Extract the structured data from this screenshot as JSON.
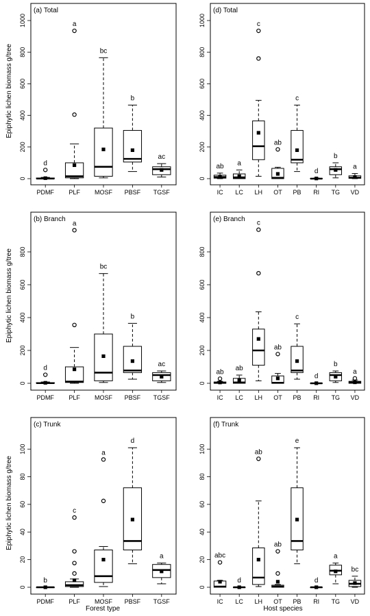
{
  "y_axis_label": "Epiphytic lichen biomass g/tree",
  "bottom_labels": {
    "left": "Forest type",
    "right": "Host species"
  },
  "chart_data": [
    {
      "type": "box",
      "panel": "(a) Total",
      "ylim": [
        0,
        1000
      ],
      "yticks": [
        0,
        200,
        400,
        600,
        800,
        1000
      ],
      "categories": [
        "PDMF",
        "PLF",
        "MOSF",
        "PBSF",
        "TGSF"
      ],
      "boxes": [
        {
          "category": "PDMF",
          "whisker_low": 0,
          "q1": 0,
          "median": 1,
          "q3": 4,
          "whisker_high": 8,
          "mean": 3,
          "outliers": [
            55
          ],
          "letter": "d"
        },
        {
          "category": "PLF",
          "whisker_low": 0,
          "q1": 5,
          "median": 15,
          "q3": 100,
          "whisker_high": 220,
          "mean": 85,
          "outliers": [
            405,
            935
          ],
          "letter": "a"
        },
        {
          "category": "MOSF",
          "whisker_low": 5,
          "q1": 15,
          "median": 75,
          "q3": 320,
          "whisker_high": 765,
          "mean": 185,
          "outliers": [],
          "letter": "bc"
        },
        {
          "category": "PBSF",
          "whisker_low": 45,
          "q1": 105,
          "median": 125,
          "q3": 305,
          "whisker_high": 465,
          "mean": 180,
          "outliers": [],
          "letter": "b"
        },
        {
          "category": "TGSF",
          "whisker_low": 10,
          "q1": 25,
          "median": 60,
          "q3": 75,
          "whisker_high": 95,
          "mean": 55,
          "outliers": [],
          "letter": "ac"
        }
      ]
    },
    {
      "type": "box",
      "panel": "(b) Branch",
      "ylim": [
        0,
        950
      ],
      "yticks": [
        0,
        200,
        400,
        600,
        800
      ],
      "categories": [
        "PDMF",
        "PLF",
        "MOSF",
        "PBSF",
        "TGSF"
      ],
      "boxes": [
        {
          "category": "PDMF",
          "whisker_low": 0,
          "q1": 0,
          "median": 1,
          "q3": 4,
          "whisker_high": 8,
          "mean": 3,
          "outliers": [
            52
          ],
          "letter": "d"
        },
        {
          "category": "PLF",
          "whisker_low": 0,
          "q1": 5,
          "median": 10,
          "q3": 100,
          "whisker_high": 218,
          "mean": 85,
          "outliers": [
            355,
            932
          ],
          "letter": "a"
        },
        {
          "category": "MOSF",
          "whisker_low": 5,
          "q1": 15,
          "median": 65,
          "q3": 300,
          "whisker_high": 668,
          "mean": 165,
          "outliers": [],
          "letter": "bc"
        },
        {
          "category": "PBSF",
          "whisker_low": 25,
          "q1": 65,
          "median": 78,
          "q3": 225,
          "whisker_high": 365,
          "mean": 135,
          "outliers": [],
          "letter": "b"
        },
        {
          "category": "TGSF",
          "whisker_low": 5,
          "q1": 15,
          "median": 50,
          "q3": 65,
          "whisker_high": 75,
          "mean": 40,
          "outliers": [],
          "letter": "ac"
        }
      ]
    },
    {
      "type": "box",
      "panel": "(c) Trunk",
      "ylim": [
        0,
        110
      ],
      "yticks": [
        0,
        20,
        40,
        60,
        80,
        100
      ],
      "categories": [
        "PDMF",
        "PLF",
        "MOSF",
        "PBSF",
        "TGSF"
      ],
      "boxes": [
        {
          "category": "PDMF",
          "whisker_low": 0,
          "q1": 0,
          "median": 0,
          "q3": 0,
          "whisker_high": 0,
          "mean": 0,
          "outliers": [],
          "letter": "b"
        },
        {
          "category": "PLF",
          "whisker_low": 0,
          "q1": 0.5,
          "median": 1.5,
          "q3": 4,
          "whisker_high": 6,
          "mean": 5,
          "outliers": [
            10,
            17.5,
            26,
            50.5
          ],
          "letter": "c"
        },
        {
          "category": "MOSF",
          "whisker_low": 0.5,
          "q1": 3.5,
          "median": 8,
          "q3": 27,
          "whisker_high": 29.5,
          "mean": 20,
          "outliers": [
            62.5,
            92.5
          ],
          "letter": "a"
        },
        {
          "category": "PBSF",
          "whisker_low": 17,
          "q1": 27,
          "median": 33.5,
          "q3": 72,
          "whisker_high": 101,
          "mean": 49,
          "outliers": [],
          "letter": "d"
        },
        {
          "category": "TGSF",
          "whisker_low": 2.5,
          "q1": 7,
          "median": 12.5,
          "q3": 16.5,
          "whisker_high": 17.5,
          "mean": 11.5,
          "outliers": [],
          "letter": "a"
        }
      ]
    },
    {
      "type": "box",
      "panel": "(d) Total",
      "ylim": [
        0,
        1000
      ],
      "yticks": [
        0,
        200,
        400,
        600,
        800,
        1000
      ],
      "categories": [
        "IC",
        "LC",
        "LH",
        "OT",
        "PB",
        "RI",
        "TG",
        "VD"
      ],
      "boxes": [
        {
          "category": "IC",
          "whisker_low": 0,
          "q1": 3,
          "median": 10,
          "q3": 22,
          "whisker_high": 35,
          "mean": 12,
          "outliers": [],
          "letter": "ab"
        },
        {
          "category": "LC",
          "whisker_low": 0,
          "q1": 0,
          "median": 8,
          "q3": 30,
          "whisker_high": 55,
          "mean": 15,
          "outliers": [],
          "letter": "a"
        },
        {
          "category": "LH",
          "whisker_low": 15,
          "q1": 120,
          "median": 205,
          "q3": 365,
          "whisker_high": 495,
          "mean": 290,
          "outliers": [
            760,
            935
          ],
          "letter": "c"
        },
        {
          "category": "OT",
          "whisker_low": 0,
          "q1": 0,
          "median": 5,
          "q3": 65,
          "whisker_high": 72,
          "mean": 30,
          "outliers": [
            185
          ],
          "letter": "ab"
        },
        {
          "category": "PB",
          "whisker_low": 45,
          "q1": 100,
          "median": 120,
          "q3": 305,
          "whisker_high": 465,
          "mean": 180,
          "outliers": [],
          "letter": "c"
        },
        {
          "category": "RI",
          "whisker_low": 0,
          "q1": 0,
          "median": 0,
          "q3": 2,
          "whisker_high": 4,
          "mean": 1,
          "outliers": [],
          "letter": "d"
        },
        {
          "category": "TG",
          "whisker_low": 5,
          "q1": 25,
          "median": 60,
          "q3": 75,
          "whisker_high": 100,
          "mean": 55,
          "outliers": [],
          "letter": "b"
        },
        {
          "category": "VD",
          "whisker_low": 0,
          "q1": 2,
          "median": 6,
          "q3": 18,
          "whisker_high": 32,
          "mean": 10,
          "outliers": [],
          "letter": "a"
        }
      ]
    },
    {
      "type": "box",
      "panel": "(e) Branch",
      "ylim": [
        0,
        950
      ],
      "yticks": [
        0,
        200,
        400,
        600,
        800
      ],
      "categories": [
        "IC",
        "LC",
        "LH",
        "OT",
        "PB",
        "RI",
        "TG",
        "VD"
      ],
      "boxes": [
        {
          "category": "IC",
          "whisker_low": 0,
          "q1": 0,
          "median": 3,
          "q3": 8,
          "whisker_high": 12,
          "mean": 5,
          "outliers": [
            28
          ],
          "letter": "ab"
        },
        {
          "category": "LC",
          "whisker_low": 0,
          "q1": 0,
          "median": 5,
          "q3": 30,
          "whisker_high": 50,
          "mean": 20,
          "outliers": [],
          "letter": "ab"
        },
        {
          "category": "LH",
          "whisker_low": 15,
          "q1": 110,
          "median": 200,
          "q3": 330,
          "whisker_high": 435,
          "mean": 270,
          "outliers": [
            670,
            935
          ],
          "letter": "c"
        },
        {
          "category": "OT",
          "whisker_low": 0,
          "q1": 0,
          "median": 3,
          "q3": 45,
          "whisker_high": 60,
          "mean": 30,
          "outliers": [
            178
          ],
          "letter": "ab"
        },
        {
          "category": "PB",
          "whisker_low": 25,
          "q1": 65,
          "median": 78,
          "q3": 225,
          "whisker_high": 362,
          "mean": 135,
          "outliers": [],
          "letter": "c"
        },
        {
          "category": "RI",
          "whisker_low": 0,
          "q1": 0,
          "median": 0,
          "q3": 1,
          "whisker_high": 2,
          "mean": 0.5,
          "outliers": [],
          "letter": "d"
        },
        {
          "category": "TG",
          "whisker_low": 5,
          "q1": 15,
          "median": 50,
          "q3": 65,
          "whisker_high": 75,
          "mean": 40,
          "outliers": [],
          "letter": "b"
        },
        {
          "category": "VD",
          "whisker_low": 0,
          "q1": 0,
          "median": 5,
          "q3": 12,
          "whisker_high": 20,
          "mean": 6,
          "outliers": [
            30
          ],
          "letter": "a"
        }
      ]
    },
    {
      "type": "box",
      "panel": "(f) Trunk",
      "ylim": [
        0,
        110
      ],
      "yticks": [
        0,
        20,
        40,
        60,
        80,
        100
      ],
      "categories": [
        "IC",
        "LC",
        "LH",
        "OT",
        "PB",
        "RI",
        "TG",
        "VD"
      ],
      "boxes": [
        {
          "category": "IC",
          "whisker_low": 0,
          "q1": 0,
          "median": 0.5,
          "q3": 4.5,
          "whisker_high": 5,
          "mean": 4,
          "outliers": [
            18
          ],
          "letter": "abc"
        },
        {
          "category": "LC",
          "whisker_low": 0,
          "q1": 0,
          "median": 0,
          "q3": 0,
          "whisker_high": 0,
          "mean": 0,
          "outliers": [],
          "letter": "d"
        },
        {
          "category": "LH",
          "whisker_low": 0.5,
          "q1": 2,
          "median": 7,
          "q3": 28.5,
          "whisker_high": 62.5,
          "mean": 20,
          "outliers": [
            93
          ],
          "letter": "ab"
        },
        {
          "category": "OT",
          "whisker_low": 0,
          "q1": 0,
          "median": 0.5,
          "q3": 1.5,
          "whisker_high": 2,
          "mean": 4,
          "outliers": [
            10,
            26
          ],
          "letter": "ab"
        },
        {
          "category": "PB",
          "whisker_low": 17,
          "q1": 27,
          "median": 33.5,
          "q3": 72,
          "whisker_high": 101,
          "mean": 49,
          "outliers": [],
          "letter": "e"
        },
        {
          "category": "RI",
          "whisker_low": 0,
          "q1": 0,
          "median": 0,
          "q3": 0,
          "whisker_high": 0,
          "mean": 0,
          "outliers": [],
          "letter": "d"
        },
        {
          "category": "TG",
          "whisker_low": 2.5,
          "q1": 9,
          "median": 12,
          "q3": 16,
          "whisker_high": 17.5,
          "mean": 11.5,
          "outliers": [],
          "letter": "a"
        },
        {
          "category": "VD",
          "whisker_low": 0,
          "q1": 0.5,
          "median": 2.5,
          "q3": 5,
          "whisker_high": 8,
          "mean": 3,
          "outliers": [],
          "letter": "bc"
        }
      ]
    }
  ]
}
